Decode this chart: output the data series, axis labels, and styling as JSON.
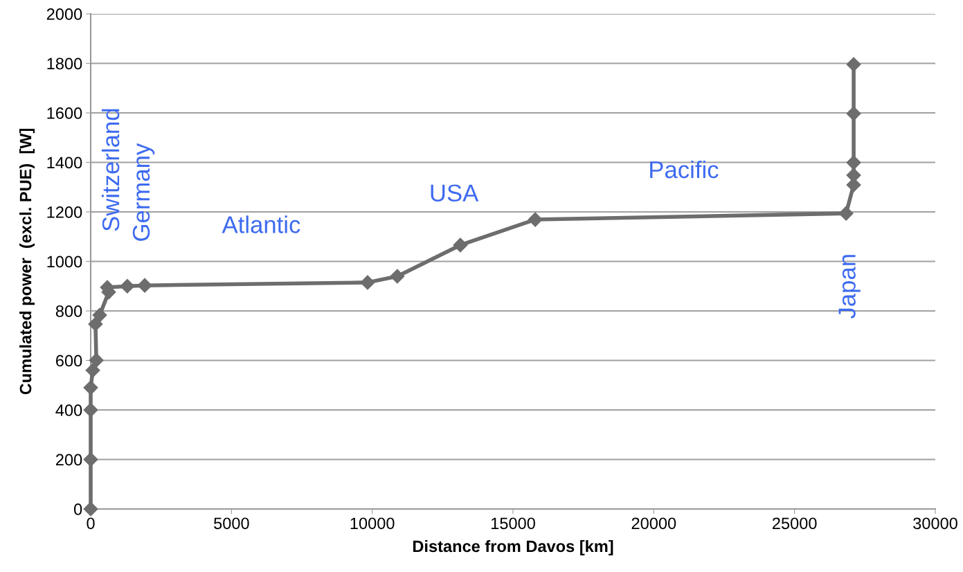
{
  "chart_data": {
    "type": "line",
    "xlabel": "Distance from Davos [km]",
    "ylabel": "Cumulated power  (excl. PUE)  [W]",
    "xlim": [
      0,
      30000
    ],
    "xticks": [
      0,
      5000,
      10000,
      15000,
      20000,
      25000,
      30000
    ],
    "ylim": [
      0,
      2000
    ],
    "yticks": [
      0,
      200,
      400,
      600,
      800,
      1000,
      1200,
      1400,
      1600,
      1800,
      2000
    ],
    "grid": "y",
    "marker": "diamond",
    "line_style": "solid",
    "series": [
      {
        "color": "#6d6d6d",
        "x": [
          0,
          0,
          0,
          0,
          75,
          200,
          170,
          320,
          640,
          590,
          1300,
          1920,
          9835,
          10890,
          13130,
          15790,
          26830,
          27100,
          27100,
          27100,
          27100,
          27100
        ],
        "values": [
          0,
          200,
          400,
          490,
          560,
          601,
          747,
          783,
          876,
          895,
          900,
          903,
          915,
          940,
          1066,
          1169,
          1194,
          1309,
          1348,
          1399,
          1597,
          1796
        ]
      }
    ],
    "annotations": [
      "Switzerland",
      "Germany",
      "Atlantic",
      "USA",
      "Pacific",
      "Japan"
    ]
  }
}
